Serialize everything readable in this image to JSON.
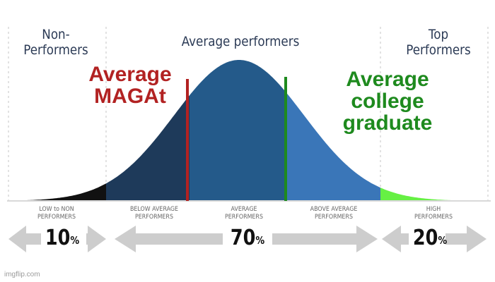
{
  "headers": {
    "non": "Non-\nPerformers",
    "avg": "Average performers",
    "top": "Top\nPerformers"
  },
  "overlay": {
    "left": {
      "text": "Average\nMAGAt",
      "color": "#b22222"
    },
    "right": {
      "text": "Average\ncollege\ngraduate",
      "color": "#1e8a1e"
    }
  },
  "segments": [
    {
      "label": "LOW to NON\nPERFORMERS",
      "color": "#111111"
    },
    {
      "label": "BELOW AVERAGE\nPERFORMERS",
      "color": "#1e3a5a"
    },
    {
      "label": "AVERAGE\nPERFORMERS",
      "color": "#245a8a"
    },
    {
      "label": "ABOVE AVERAGE\nPERFORMERS",
      "color": "#3a76b8"
    },
    {
      "label": "HIGH\nPERFORMERS",
      "color": "#66f044"
    }
  ],
  "percents": [
    {
      "value": "10",
      "symbol": "%"
    },
    {
      "value": "70",
      "symbol": "%"
    },
    {
      "value": "20",
      "symbol": "%"
    }
  ],
  "markers": [
    {
      "name": "Average MAGAt",
      "color": "#b22222"
    },
    {
      "name": "Average college graduate",
      "color": "#1e8a1e"
    }
  ],
  "watermark": "imgflip.com"
}
